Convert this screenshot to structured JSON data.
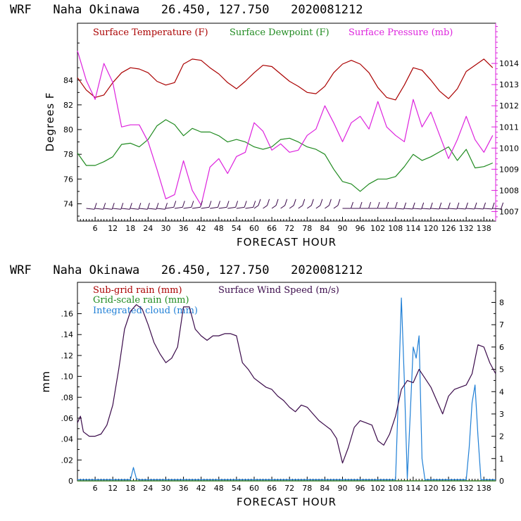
{
  "colors": {
    "temperature": "#aa0000",
    "dewpoint": "#1f8a1f",
    "pressure": "#dd22dd",
    "subgrid_rain": "#aa0000",
    "gridscale_rain": "#1f8a1f",
    "cloud": "#1f7fd6",
    "wind": "#3a0a4a"
  },
  "chart_data": [
    {
      "type": "line",
      "title": "WRF   Naha Okinawa   26.450, 127.750   2020081212",
      "xlabel": "FORECAST HOUR",
      "ylabel": "Degrees F",
      "y2label": "",
      "xlim": [
        0,
        142
      ],
      "ylim": [
        72.6,
        88.6
      ],
      "y2lim": [
        1006.55,
        1015.9
      ],
      "xticks": [
        "6",
        "12",
        "18",
        "24",
        "30",
        "36",
        "42",
        "48",
        "54",
        "60",
        "66",
        "72",
        "78",
        "84",
        "90",
        "96",
        "102",
        "108",
        "114",
        "120",
        "126",
        "132",
        "138"
      ],
      "yticks": [
        74,
        76,
        78,
        80,
        82,
        84
      ],
      "y2ticks": [
        1007,
        1008,
        1009,
        1010,
        1011,
        1012,
        1013,
        1014
      ],
      "grid": false,
      "legend_placement": "top",
      "series": [
        {
          "name": "Surface Temperature (F)",
          "axis": "left",
          "x": [
            0,
            3,
            6,
            9,
            12,
            15,
            18,
            21,
            24,
            27,
            30,
            33,
            36,
            39,
            42,
            45,
            48,
            51,
            54,
            57,
            60,
            63,
            66,
            69,
            72,
            75,
            78,
            81,
            84,
            87,
            90,
            93,
            96,
            99,
            102,
            105,
            108,
            111,
            114,
            117,
            120,
            123,
            126,
            129,
            132,
            135,
            138,
            141
          ],
          "y": [
            84.2,
            83.2,
            82.6,
            82.8,
            83.8,
            84.6,
            85.0,
            84.9,
            84.6,
            83.9,
            83.6,
            83.8,
            85.3,
            85.7,
            85.6,
            85.0,
            84.5,
            83.8,
            83.3,
            83.9,
            84.6,
            85.2,
            85.1,
            84.5,
            83.9,
            83.5,
            83.0,
            82.9,
            83.5,
            84.6,
            85.3,
            85.6,
            85.3,
            84.6,
            83.4,
            82.6,
            82.4,
            83.6,
            85.0,
            84.8,
            84.0,
            83.1,
            82.5,
            83.3,
            84.7,
            85.2,
            85.7,
            85.0
          ]
        },
        {
          "name": "Surface Dewpoint (F)",
          "axis": "left",
          "x": [
            0,
            3,
            6,
            9,
            12,
            15,
            18,
            21,
            24,
            27,
            30,
            33,
            36,
            39,
            42,
            45,
            48,
            51,
            54,
            57,
            60,
            63,
            66,
            69,
            72,
            75,
            78,
            81,
            84,
            87,
            90,
            93,
            96,
            99,
            102,
            105,
            108,
            111,
            114,
            117,
            120,
            123,
            126,
            129,
            132,
            135,
            138,
            141
          ],
          "y": [
            78.1,
            77.1,
            77.1,
            77.4,
            77.8,
            78.8,
            78.9,
            78.6,
            79.2,
            80.3,
            80.8,
            80.4,
            79.5,
            80.1,
            79.8,
            79.8,
            79.5,
            79.0,
            79.2,
            79.0,
            78.6,
            78.4,
            78.6,
            79.2,
            79.3,
            79.0,
            78.6,
            78.4,
            78.0,
            76.8,
            75.8,
            75.6,
            75.0,
            75.6,
            76.0,
            76.0,
            76.2,
            77.0,
            78.0,
            77.5,
            77.8,
            78.2,
            78.6,
            77.5,
            78.4,
            76.9,
            77.0,
            77.3
          ]
        },
        {
          "name": "Surface Pressure (mb)",
          "axis": "right",
          "x": [
            0,
            3,
            6,
            9,
            12,
            15,
            18,
            21,
            24,
            27,
            30,
            33,
            36,
            39,
            42,
            45,
            48,
            51,
            54,
            57,
            60,
            63,
            66,
            69,
            72,
            75,
            78,
            81,
            84,
            87,
            90,
            93,
            96,
            99,
            102,
            105,
            108,
            111,
            114,
            117,
            120,
            123,
            126,
            129,
            132,
            135,
            138,
            141
          ],
          "y": [
            1014.6,
            1013.2,
            1012.3,
            1014.0,
            1013.1,
            1011.0,
            1011.1,
            1011.1,
            1010.3,
            1009.0,
            1007.6,
            1007.8,
            1009.4,
            1008.0,
            1007.3,
            1009.1,
            1009.5,
            1008.8,
            1009.6,
            1009.8,
            1011.2,
            1010.8,
            1009.9,
            1010.2,
            1009.8,
            1009.9,
            1010.6,
            1010.9,
            1012.0,
            1011.2,
            1010.3,
            1011.2,
            1011.5,
            1010.9,
            1012.2,
            1011.0,
            1010.6,
            1010.3,
            1012.3,
            1011.0,
            1011.7,
            1010.6,
            1009.5,
            1010.4,
            1011.5,
            1010.4,
            1009.8,
            1010.6
          ]
        }
      ],
      "wind_barbs": true
    },
    {
      "type": "line",
      "title": "WRF   Naha Okinawa   26.450, 127.750   2020081212",
      "xlabel": "FORECAST HOUR",
      "ylabel": "mm",
      "y2label": "",
      "xlim": [
        0,
        142
      ],
      "ylim": [
        0,
        0.19
      ],
      "y2lim": [
        0,
        8.9
      ],
      "xticks": [
        "6",
        "12",
        "18",
        "24",
        "30",
        "36",
        "42",
        "48",
        "54",
        "60",
        "66",
        "72",
        "78",
        "84",
        "90",
        "96",
        "102",
        "108",
        "114",
        "120",
        "126",
        "132",
        "138"
      ],
      "yticks": [
        "0",
        ".02",
        ".04",
        ".06",
        ".08",
        ".10",
        ".12",
        ".14",
        ".16"
      ],
      "y2ticks": [
        0,
        1,
        2,
        3,
        4,
        5,
        6,
        7,
        8
      ],
      "grid": false,
      "legend_placement": "top-left",
      "series": [
        {
          "name": "Sub-grid rain (mm)",
          "axis": "left",
          "x": [
            0,
            142
          ],
          "y": [
            0,
            0
          ]
        },
        {
          "name": "Grid-scale rain (mm)",
          "axis": "left",
          "x": [
            0,
            142
          ],
          "y": [
            0,
            0
          ]
        },
        {
          "name": "Integrated cloud (mm)",
          "axis": "right",
          "x": [
            0,
            18,
            19,
            20,
            21,
            22,
            108,
            109,
            110,
            111,
            112,
            113,
            114,
            115,
            116,
            117,
            118,
            119,
            132,
            133,
            134,
            135,
            136,
            137,
            142
          ],
          "y": [
            0.05,
            0.05,
            0.6,
            0.1,
            0.05,
            0.05,
            0.05,
            4.0,
            8.2,
            4.5,
            0.1,
            3.0,
            6.0,
            5.5,
            6.5,
            1.0,
            0.05,
            0.05,
            0.05,
            1.5,
            3.5,
            4.3,
            2.0,
            0.05,
            0.05
          ]
        },
        {
          "name": "Surface Wind Speed (m/s)",
          "axis": "right",
          "x": [
            0,
            1,
            2,
            4,
            6,
            8,
            10,
            12,
            14,
            16,
            18,
            20,
            22,
            24,
            26,
            28,
            30,
            32,
            34,
            36,
            38,
            40,
            42,
            44,
            46,
            48,
            50,
            52,
            54,
            56,
            58,
            60,
            62,
            64,
            66,
            68,
            70,
            72,
            74,
            76,
            78,
            80,
            82,
            84,
            86,
            88,
            90,
            92,
            94,
            96,
            98,
            100,
            102,
            104,
            106,
            108,
            110,
            112,
            114,
            116,
            118,
            120,
            122,
            124,
            126,
            128,
            130,
            132,
            134,
            136,
            138,
            140,
            142
          ],
          "y": [
            2.6,
            2.9,
            2.2,
            2.0,
            2.0,
            2.1,
            2.5,
            3.4,
            5.0,
            6.8,
            7.6,
            7.9,
            7.7,
            7.0,
            6.2,
            5.7,
            5.3,
            5.5,
            6.0,
            7.8,
            7.8,
            6.8,
            6.5,
            6.3,
            6.5,
            6.5,
            6.6,
            6.6,
            6.5,
            5.3,
            5.0,
            4.6,
            4.4,
            4.2,
            4.1,
            3.8,
            3.6,
            3.3,
            3.1,
            3.4,
            3.3,
            3.0,
            2.7,
            2.5,
            2.3,
            1.9,
            0.8,
            1.5,
            2.4,
            2.7,
            2.6,
            2.5,
            1.8,
            1.6,
            2.1,
            2.9,
            4.1,
            4.5,
            4.4,
            5.0,
            4.6,
            4.2,
            3.6,
            3.0,
            3.8,
            4.1,
            4.2,
            4.3,
            4.8,
            6.1,
            6.0,
            5.3,
            4.8
          ]
        }
      ]
    }
  ]
}
